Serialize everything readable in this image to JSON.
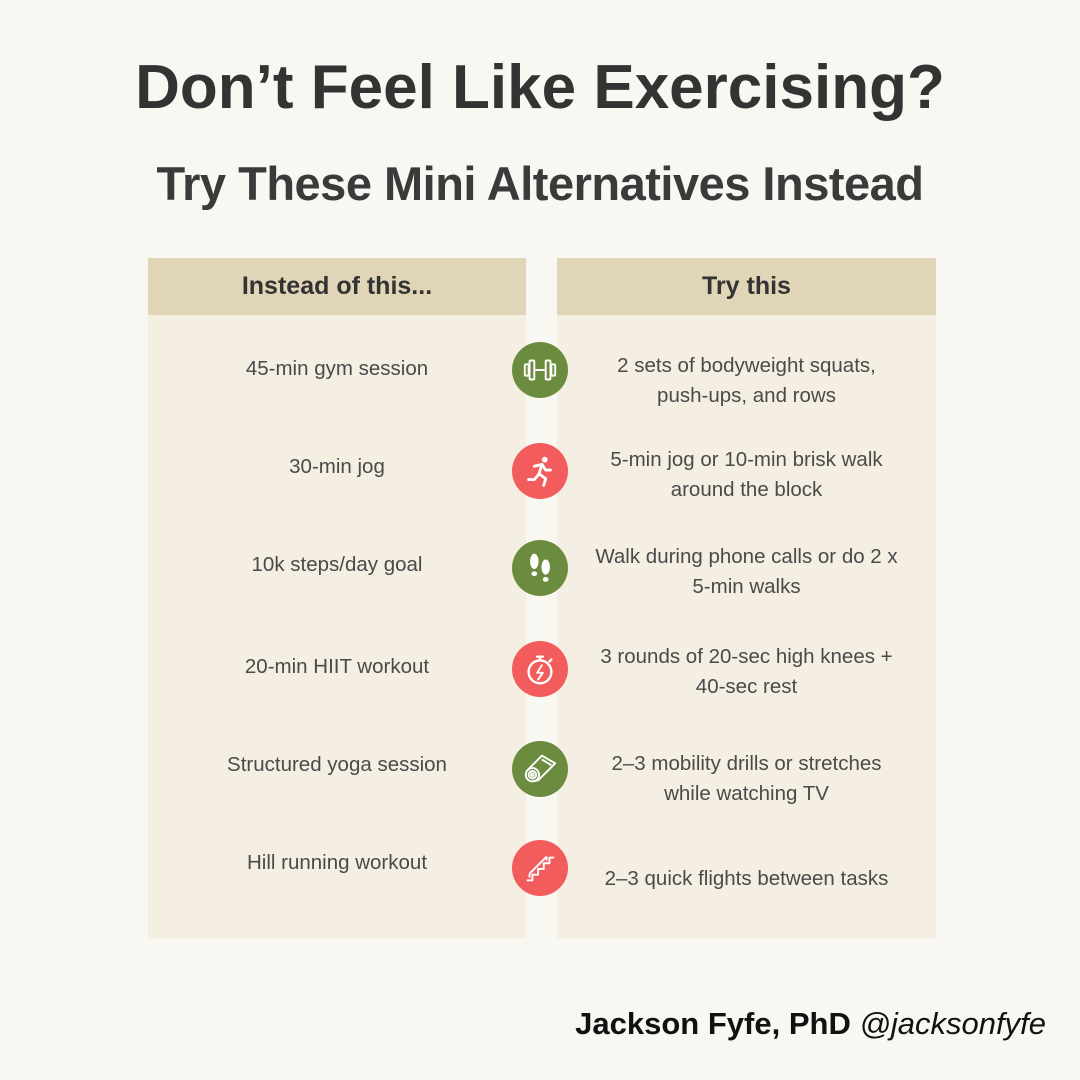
{
  "title": "Don’t Feel Like Exercising?",
  "subtitle": "Try These Mini Alternatives Instead",
  "columns": {
    "left_header": "Instead of this...",
    "right_header": "Try this"
  },
  "rows": [
    {
      "instead": "45-min gym session",
      "try": "2 sets of bodyweight squats, push-ups, and rows",
      "icon": "dumbbell-icon",
      "icon_color": "#6b8c3e"
    },
    {
      "instead": "30-min jog",
      "try": "5-min jog or 10-min brisk walk around the block",
      "icon": "running-icon",
      "icon_color": "#f25c5c"
    },
    {
      "instead": "10k steps/day goal",
      "try": "Walk during phone calls or do 2 x 5-min walks",
      "icon": "footprints-icon",
      "icon_color": "#6b8c3e"
    },
    {
      "instead": "20-min HIIT workout",
      "try": "3 rounds of 20-sec high knees + 40-sec rest",
      "icon": "stopwatch-icon",
      "icon_color": "#f25c5c"
    },
    {
      "instead": "Structured yoga session",
      "try": "2–3 mobility drills or stretches while watching TV",
      "icon": "yoga-mat-icon",
      "icon_color": "#6b8c3e"
    },
    {
      "instead": "Hill running workout",
      "try": "2–3 quick flights between tasks",
      "icon": "stairs-icon",
      "icon_color": "#f25c5c"
    }
  ],
  "credit": {
    "name": "Jackson Fyfe, PhD",
    "handle": "@jacksonfyfe"
  }
}
